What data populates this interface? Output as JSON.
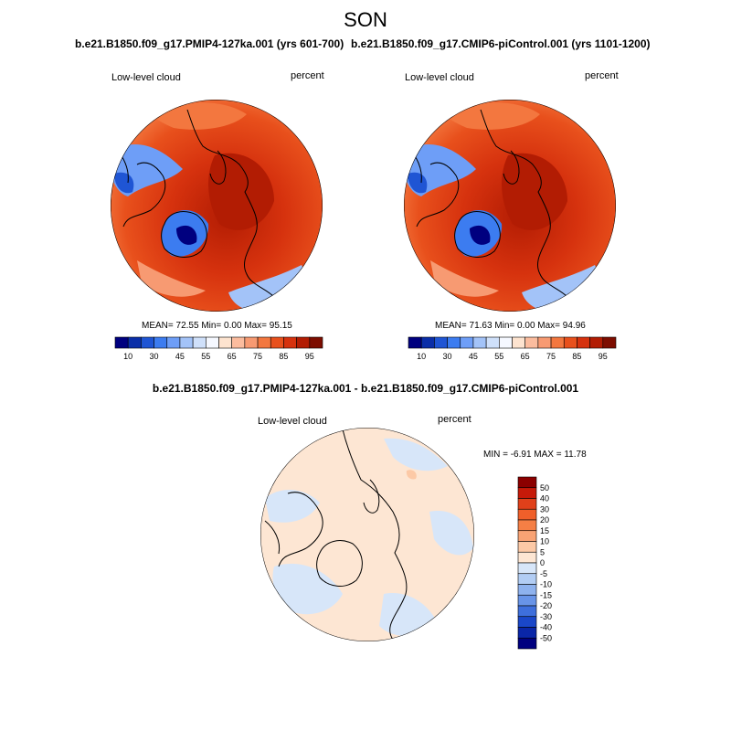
{
  "season": "SON",
  "panels": [
    {
      "title": "b.e21.B1850.f09_g17.PMIP4-127ka.001 (yrs 601-700)",
      "variable": "Low-level cloud",
      "units": "percent",
      "stats": "MEAN= 72.55  Min=   0.00  Max=  95.15"
    },
    {
      "title": "b.e21.B1850.f09_g17.CMIP6-piControl.001 (yrs 1101-1200)",
      "variable": "Low-level cloud",
      "units": "percent",
      "stats": "MEAN= 71.63  Min=   0.00  Max=  94.96"
    },
    {
      "title": "b.e21.B1850.f09_g17.PMIP4-127ka.001 - b.e21.B1850.f09_g17.CMIP6-piControl.001",
      "variable": "Low-level cloud",
      "units": "percent",
      "stats": "MIN =  -6.91 MAX =  11.78"
    }
  ],
  "chart_data": [
    {
      "type": "heatmap",
      "projection": "north-polar-stereographic",
      "title": "b.e21.B1850.f09_g17.PMIP4-127ka.001 (yrs 601-700)",
      "variable": "Low-level cloud",
      "units": "percent",
      "mean": 72.55,
      "min": 0.0,
      "max": 95.15,
      "colorbar": {
        "orientation": "horizontal",
        "ticks": [
          10,
          30,
          45,
          55,
          65,
          75,
          85,
          95
        ],
        "levels": [
          10,
          20,
          30,
          40,
          45,
          50,
          55,
          60,
          65,
          70,
          75,
          80,
          85,
          90,
          95
        ],
        "colors": [
          "#00007f",
          "#0a2ea8",
          "#1f55d4",
          "#3c7cf0",
          "#6e9ef7",
          "#a3c3f8",
          "#cfe0fa",
          "#f5f8ff",
          "#fde3cf",
          "#fbbc9e",
          "#f79a72",
          "#f3773f",
          "#e8501c",
          "#d6320e",
          "#b21c03",
          "#7d0d00"
        ]
      }
    },
    {
      "type": "heatmap",
      "projection": "north-polar-stereographic",
      "title": "b.e21.B1850.f09_g17.CMIP6-piControl.001 (yrs 1101-1200)",
      "variable": "Low-level cloud",
      "units": "percent",
      "mean": 71.63,
      "min": 0.0,
      "max": 94.96,
      "colorbar": {
        "orientation": "horizontal",
        "ticks": [
          10,
          30,
          45,
          55,
          65,
          75,
          85,
          95
        ],
        "levels": [
          10,
          20,
          30,
          40,
          45,
          50,
          55,
          60,
          65,
          70,
          75,
          80,
          85,
          90,
          95
        ],
        "colors": [
          "#00007f",
          "#0a2ea8",
          "#1f55d4",
          "#3c7cf0",
          "#6e9ef7",
          "#a3c3f8",
          "#cfe0fa",
          "#f5f8ff",
          "#fde3cf",
          "#fbbc9e",
          "#f79a72",
          "#f3773f",
          "#e8501c",
          "#d6320e",
          "#b21c03",
          "#7d0d00"
        ]
      }
    },
    {
      "type": "heatmap",
      "projection": "north-polar-stereographic",
      "title": "b.e21.B1850.f09_g17.PMIP4-127ka.001 - b.e21.B1850.f09_g17.CMIP6-piControl.001",
      "variable": "Low-level cloud",
      "units": "percent",
      "min": -6.91,
      "max": 11.78,
      "colorbar": {
        "orientation": "vertical",
        "ticks": [
          50,
          40,
          30,
          20,
          15,
          10,
          5,
          0,
          -5,
          -10,
          -15,
          -20,
          -30,
          -40,
          -50
        ],
        "colors": [
          "#8b0000",
          "#c61a09",
          "#e0401a",
          "#ef5f2a",
          "#f57f45",
          "#f9a374",
          "#fcc9a6",
          "#fde6d3",
          "#d7e6f9",
          "#b2cdf4",
          "#8eb2ee",
          "#6894e8",
          "#3e6fdc",
          "#1a47c9",
          "#0a26a8",
          "#00007f"
        ]
      }
    }
  ]
}
